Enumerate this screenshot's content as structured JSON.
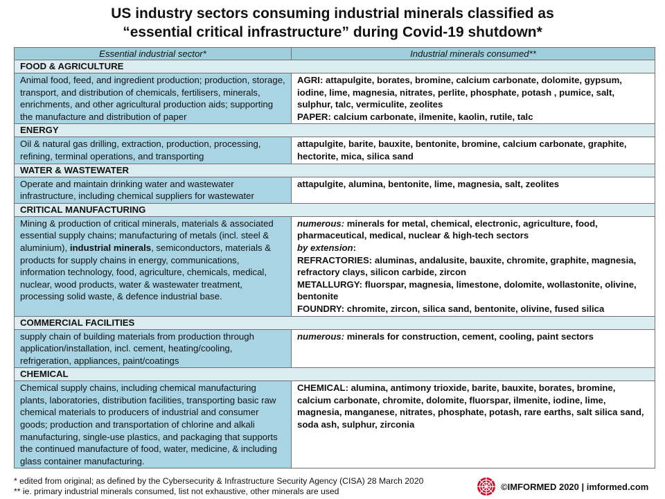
{
  "title": {
    "line1": "US industry sectors consuming industrial minerals classified as",
    "line2": "“essential critical infrastructure” during Covid-19 shutdown*"
  },
  "table": {
    "headers": [
      "Essential industrial sector*",
      "Industrial minerals consumed**"
    ],
    "sectors": [
      {
        "name": "FOOD & AGRICULTURE",
        "description": "Animal food, feed, and ingredient production; production, storage, transport, and distribution of chemicals, fertilisers, minerals, enrichments, and other agricultural production aids; supporting the manufacture and distribution of paper",
        "minerals": [
          "AGRI: attapulgite, borates, bromine, calcium carbonate, dolomite, gypsum, iodine, lime, magnesia, nitrates, perlite, phosphate, potash , pumice, salt, sulphur, talc, vermiculite, zeolites",
          "PAPER: calcium carbonate, ilmenite, kaolin, rutile, talc"
        ]
      },
      {
        "name": "ENERGY",
        "description": "Oil & natural gas drilling, extraction, production, processing, refining, terminal operations, and transporting",
        "minerals": [
          "attapulgite, barite, bauxite, bentonite, bromine, calcium carbonate, graphite, hectorite, mica, silica sand"
        ]
      },
      {
        "name": "WATER & WASTEWATER",
        "description": "Operate and maintain drinking water and wastewater infrastructure, including chemical suppliers for wastewater",
        "minerals": [
          "attapulgite, alumina, bentonite, lime, magnesia, salt, zeolites"
        ]
      },
      {
        "name": "CRITICAL MANUFACTURING",
        "description_before": "Mining & production of critical minerals, materials & associated essential supply chains; manufacturing of metals (incl. steel & aluminium), ",
        "description_bold": "industrial minerals",
        "description_after": ", semiconductors, materials & products for supply chains in energy, communications, information technology, food, agriculture, chemicals, medical, nuclear, wood products, water & wastewater treatment, processing solid waste, & defence industrial base.",
        "numerous_label": "numerous:",
        "numerous_text": " minerals for metal, chemical, electronic, agriculture, food, pharmaceutical, medical, nuclear & high-tech sectors",
        "extension_label": "by extension",
        "extension_colon": ":",
        "minerals": [
          "REFRACTORIES: aluminas, andalusite, bauxite, chromite, graphite, magnesia, refractory clays, silicon carbide, zircon",
          "METALLURGY: fluorspar, magnesia, limestone, dolomite, wollastonite, olivine, bentonite",
          "FOUNDRY: chromite, zircon, silica sand, bentonite, olivine, fused silica"
        ]
      },
      {
        "name": "COMMERCIAL FACILITIES",
        "description": "supply chain of building materials from production through application/installation,  incl. cement, heating/cooling, refrigeration, appliances, paint/coatings",
        "numerous_label": "numerous:",
        "numerous_text": "  minerals for construction, cement, cooling, paint sectors"
      },
      {
        "name": "CHEMICAL",
        "description": "Chemical supply chains, including chemical manufacturing plants, laboratories, distribution facilities, transporting basic raw chemical materials to producers of industrial and consumer goods; production and transportation of chlorine and alkali manufacturing, single-use plastics, and packaging that supports the continued manufacture of food, water, medicine, & including glass container manufacturing.",
        "minerals": [
          "CHEMICAL: alumina,  antimony trioxide, barite, bauxite, borates, bromine, calcium carbonate, chromite, dolomite, fluorspar, ilmenite, iodine, lime, magnesia, manganese, nitrates, phosphate, potash, rare earths, salt silica sand, soda ash, sulphur, zirconia"
        ]
      }
    ]
  },
  "footer": {
    "note1": "* edited from original;  as defined by the Cybersecurity & Infrastructure  Security Agency (CISA) 28 March 2020",
    "note2": "** ie. primary industrial minerals consumed, list not exhaustive,  other minerals are used",
    "brand": "©IMFORMED 2020  | imformed.com"
  },
  "colors": {
    "header_bg": "#9fcedc",
    "section_bg": "#dcedf2",
    "left_cell_bg": "#a8d4e3",
    "logo_red": "#c8102e"
  },
  "icons": {
    "brand_logo": "imformed-logo-icon"
  }
}
